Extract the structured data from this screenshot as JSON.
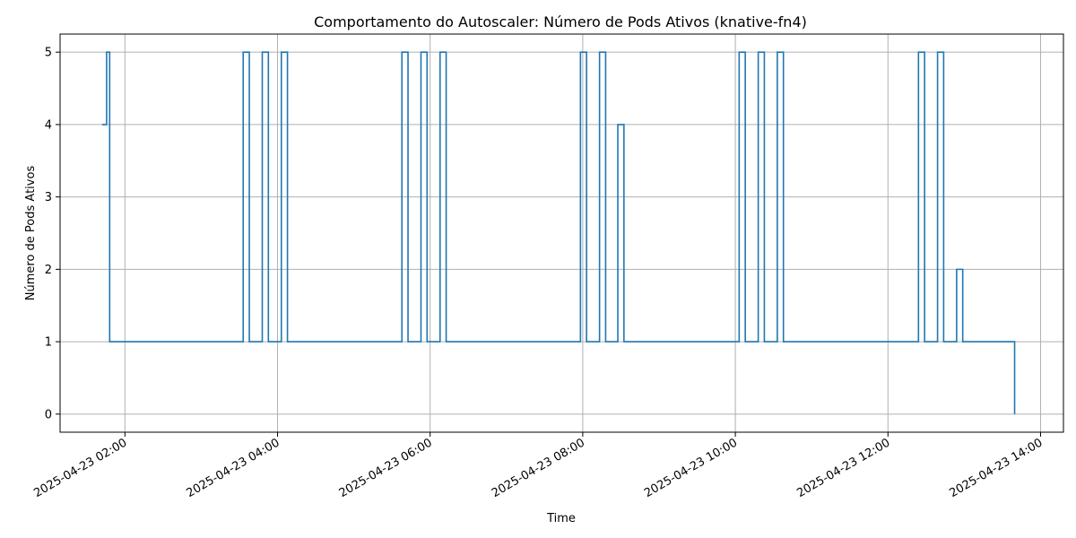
{
  "chart_data": {
    "type": "line",
    "title": "Comportamento do Autoscaler: Número de Pods Ativos (knative-fn4)",
    "xlabel": "Time",
    "ylabel": "Número de Pods Ativos",
    "x_unit": "hour of 2025-04-23",
    "xlim": [
      1.15,
      14.3
    ],
    "ylim": [
      -0.25,
      5.25
    ],
    "grid": true,
    "line_color": "#1f77b4",
    "x_ticks": [
      {
        "value": 2,
        "label": "2025-04-23 02:00"
      },
      {
        "value": 4,
        "label": "2025-04-23 04:00"
      },
      {
        "value": 6,
        "label": "2025-04-23 06:00"
      },
      {
        "value": 8,
        "label": "2025-04-23 08:00"
      },
      {
        "value": 10,
        "label": "2025-04-23 10:00"
      },
      {
        "value": 12,
        "label": "2025-04-23 12:00"
      },
      {
        "value": 14,
        "label": "2025-04-23 14:00"
      }
    ],
    "y_ticks": [
      {
        "value": 0,
        "label": "0"
      },
      {
        "value": 1,
        "label": "1"
      },
      {
        "value": 2,
        "label": "2"
      },
      {
        "value": 3,
        "label": "3"
      },
      {
        "value": 4,
        "label": "4"
      },
      {
        "value": 5,
        "label": "5"
      }
    ],
    "series": [
      {
        "step": "post",
        "x": [
          1.7,
          1.76,
          1.8,
          3.55,
          3.63,
          3.8,
          3.88,
          4.05,
          4.13,
          5.63,
          5.71,
          5.88,
          5.96,
          6.13,
          6.21,
          7.97,
          8.05,
          8.22,
          8.3,
          8.46,
          8.54,
          10.05,
          10.13,
          10.3,
          10.38,
          10.55,
          10.63,
          12.4,
          12.48,
          12.65,
          12.73,
          12.9,
          12.98,
          13.66
        ],
        "y": [
          4,
          5,
          1,
          5,
          1,
          5,
          1,
          5,
          1,
          5,
          1,
          5,
          1,
          5,
          1,
          5,
          1,
          5,
          1,
          4,
          1,
          5,
          1,
          5,
          1,
          5,
          1,
          5,
          1,
          5,
          1,
          2,
          1,
          0
        ]
      }
    ]
  }
}
